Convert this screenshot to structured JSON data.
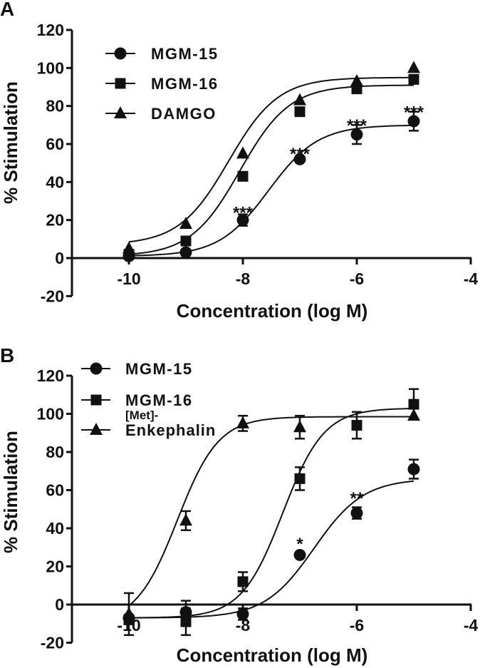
{
  "chart_data": [
    {
      "panel_label": "A",
      "type": "scatter",
      "xlabel": "Concentration (log M)",
      "ylabel": "% Stimulation",
      "xlim": [
        -11,
        -4
      ],
      "ylim": [
        -20,
        120
      ],
      "xticks": [
        -10,
        -8,
        -6,
        -4
      ],
      "yticks": [
        -20,
        0,
        20,
        40,
        60,
        80,
        100,
        120
      ],
      "legend_position": "top-left",
      "series": [
        {
          "name": "MGM-15",
          "marker": "circle",
          "x": [
            -10,
            -9,
            -8,
            -7,
            -6,
            -5
          ],
          "y": [
            1,
            3,
            20,
            52,
            65,
            72
          ],
          "err": [
            0,
            0,
            3,
            0,
            5,
            5
          ],
          "fit": {
            "bottom": 1,
            "top": 70,
            "logEC50": -7.55,
            "hill": 1
          }
        },
        {
          "name": "MGM-16",
          "marker": "square",
          "x": [
            -10,
            -9,
            -8,
            -7,
            -6,
            -5
          ],
          "y": [
            2,
            9,
            43,
            77,
            89,
            94
          ],
          "err": [
            0,
            0,
            0,
            0,
            0,
            0
          ],
          "fit": {
            "bottom": 1,
            "top": 91,
            "logEC50": -8.05,
            "hill": 1
          }
        },
        {
          "name": "DAMGO",
          "marker": "triangle",
          "x": [
            -10,
            -9,
            -8,
            -7,
            -6,
            -5
          ],
          "y": [
            5,
            18,
            55,
            83,
            93,
            100
          ],
          "err": [
            0,
            0,
            0,
            0,
            0,
            0
          ],
          "fit": {
            "bottom": 7,
            "top": 95,
            "logEC50": -8.25,
            "hill": 1
          }
        }
      ],
      "annotations": [
        {
          "x": -8,
          "y": 26,
          "text": "***"
        },
        {
          "x": -7,
          "y": 57,
          "text": "***"
        },
        {
          "x": -6,
          "y": 72,
          "text": "***"
        },
        {
          "x": -5,
          "y": 79,
          "text": "***"
        }
      ]
    },
    {
      "panel_label": "B",
      "type": "scatter",
      "xlabel": "Concentration (log M)",
      "ylabel": "% Stimulation",
      "xlim": [
        -11,
        -4
      ],
      "ylim": [
        -20,
        120
      ],
      "xticks": [
        -10,
        -8,
        -6,
        -4
      ],
      "yticks": [
        -20,
        0,
        20,
        40,
        60,
        80,
        100,
        120
      ],
      "legend_position": "top-left",
      "series": [
        {
          "name": "MGM-15",
          "marker": "circle",
          "x": [
            -10,
            -9,
            -8,
            -7,
            -6,
            -5
          ],
          "y": [
            -7,
            -4,
            -5,
            26,
            48,
            71
          ],
          "err": [
            0,
            6,
            3,
            0,
            3,
            5
          ],
          "fit": {
            "bottom": -7,
            "top": 66,
            "logEC50": -6.75,
            "hill": 1
          }
        },
        {
          "name": "MGM-16",
          "marker": "square",
          "x": [
            -10,
            -9,
            -8,
            -7,
            -6,
            -5
          ],
          "y": [
            -8,
            -9,
            12,
            66,
            94,
            105
          ],
          "err": [
            0,
            7,
            5,
            6,
            7,
            8
          ],
          "fit": {
            "bottom": -7,
            "top": 103,
            "logEC50": -7.3,
            "hill": 1.2
          }
        },
        {
          "name": "[Met]-Enkephalin",
          "legend_lines": [
            "[Met]-",
            "Enkephalin"
          ],
          "marker": "triangle",
          "x": [
            -10,
            -9,
            -8,
            -7,
            -5
          ],
          "y": [
            -5,
            44,
            95,
            93,
            99
          ],
          "err": [
            11,
            5,
            4,
            6,
            0
          ],
          "fit": {
            "bottom": -10,
            "top": 98.5,
            "logEC50": -9.15,
            "hill": 1.2
          }
        }
      ],
      "annotations": [
        {
          "x": -7,
          "y": 34,
          "text": "*"
        },
        {
          "x": -6,
          "y": 58,
          "text": "**"
        }
      ]
    }
  ]
}
